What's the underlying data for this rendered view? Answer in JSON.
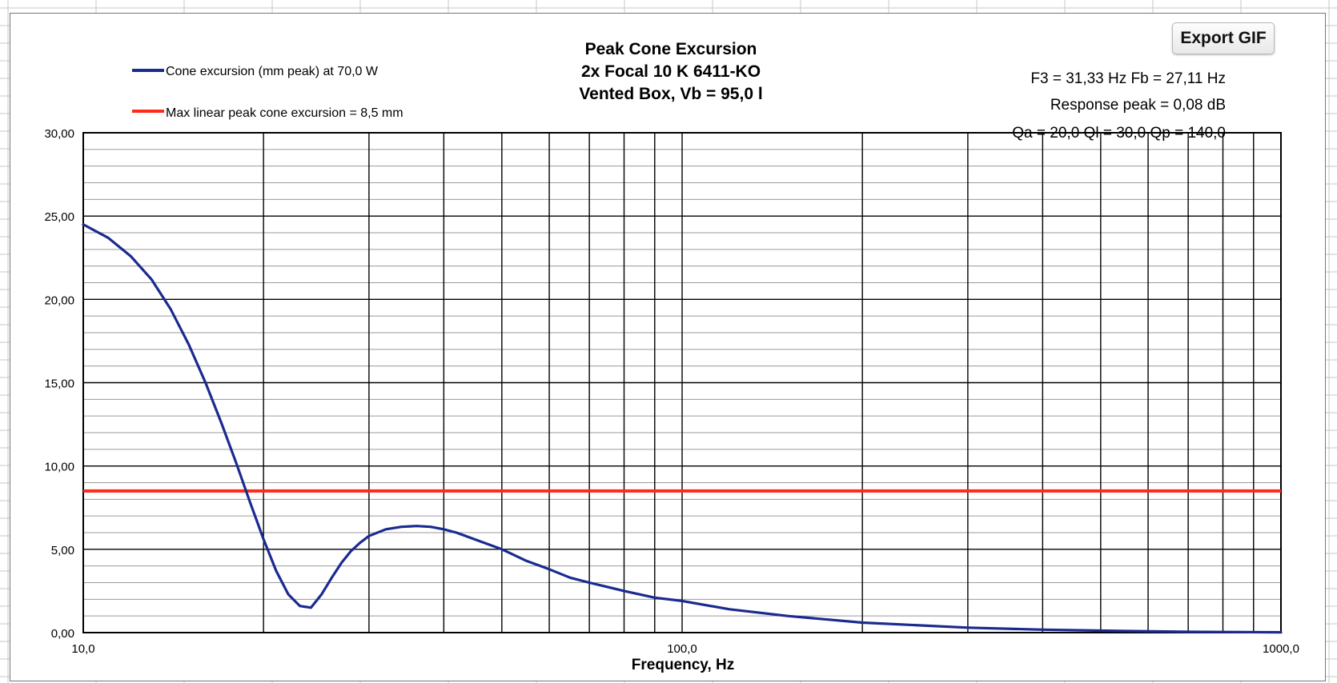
{
  "toolbar": {
    "export_label": "Export GIF"
  },
  "colors": {
    "series": "#1b2a8f",
    "limit": "#ff2a1a",
    "grid_major": "#000000",
    "grid_minor": "#9a9a9a",
    "sheet_grid": "#c7c7c7"
  },
  "chart_data": {
    "type": "line",
    "title_lines": [
      "Peak Cone Excursion",
      "2x Focal 10 K 6411-KO",
      "Vented Box, Vb = 95,0 l"
    ],
    "xlabel": "Frequency, Hz",
    "ylabel": "",
    "x_scale": "log",
    "xlim": [
      10,
      1000
    ],
    "ylim": [
      0,
      30
    ],
    "x_tick_labels": [
      "10,0",
      "100,0",
      "1000,0"
    ],
    "y_tick_labels": [
      "0,00",
      "5,00",
      "10,00",
      "15,00",
      "20,00",
      "25,00",
      "30,00"
    ],
    "grid": true,
    "legend_position": "top-left",
    "info_lines": [
      "F3 = 31,33 Hz  Fb = 27,11 Hz",
      "Response peak = 0,08 dB",
      "Qa = 20,0  Ql = 30,0  Qp = 140,0"
    ],
    "series": [
      {
        "name": "Cone excursion (mm peak) at 70,0 W",
        "x": [
          10,
          11,
          12,
          13,
          14,
          15,
          16,
          17,
          18,
          19,
          20,
          21,
          22,
          23,
          24,
          25,
          26,
          27,
          28,
          29,
          30,
          32,
          34,
          36,
          38,
          40,
          42,
          45,
          50,
          55,
          60,
          65,
          70,
          80,
          90,
          100,
          120,
          150,
          200,
          300,
          400,
          500,
          700,
          1000
        ],
        "y": [
          24.5,
          23.7,
          22.6,
          21.2,
          19.4,
          17.3,
          15.0,
          12.6,
          10.2,
          7.8,
          5.6,
          3.7,
          2.3,
          1.6,
          1.5,
          2.3,
          3.3,
          4.2,
          4.9,
          5.4,
          5.8,
          6.2,
          6.35,
          6.4,
          6.35,
          6.2,
          6.0,
          5.6,
          5.0,
          4.3,
          3.8,
          3.3,
          3.0,
          2.5,
          2.1,
          1.9,
          1.4,
          1.0,
          0.6,
          0.3,
          0.18,
          0.12,
          0.05,
          0.02
        ]
      },
      {
        "name": "Max linear peak cone excursion = 8,5 mm",
        "x": [
          10,
          1000
        ],
        "y": [
          8.5,
          8.5
        ]
      }
    ]
  }
}
